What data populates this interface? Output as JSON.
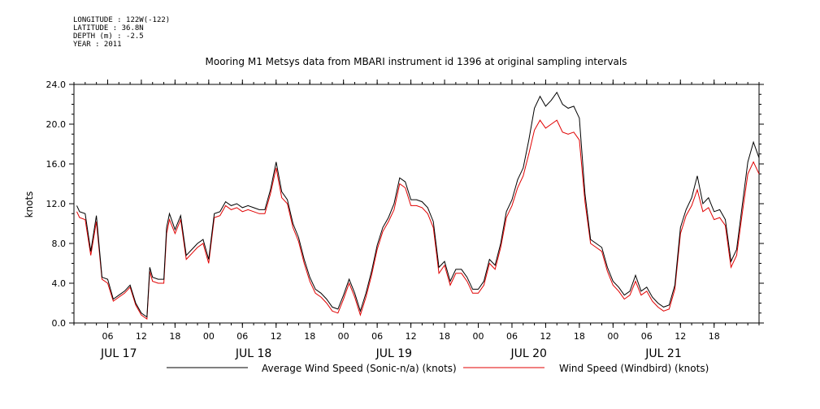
{
  "meta": {
    "longitude": "LONGITUDE : 122W(-122)",
    "latitude": "LATITUDE : 36.8N",
    "depth": "DEPTH (m) : -2.5",
    "year": "YEAR : 2011"
  },
  "chart_data": {
    "type": "line",
    "title": "Mooring M1 Metsys data from MBARI instrument id 1396 at original sampling intervals",
    "ylabel": "knots",
    "xlabel": "",
    "ylim": [
      0,
      24
    ],
    "y_ticks": [
      "0.0",
      "4.0",
      "8.0",
      "12.0",
      "16.0",
      "20.0",
      "24.0"
    ],
    "x_range_hours": [
      0,
      122
    ],
    "x_hour_ticks": [
      {
        "h": 6,
        "label": "06"
      },
      {
        "h": 12,
        "label": "12"
      },
      {
        "h": 18,
        "label": "18"
      },
      {
        "h": 24,
        "label": "00"
      },
      {
        "h": 30,
        "label": "06"
      },
      {
        "h": 36,
        "label": "12"
      },
      {
        "h": 42,
        "label": "18"
      },
      {
        "h": 48,
        "label": "00"
      },
      {
        "h": 54,
        "label": "06"
      },
      {
        "h": 60,
        "label": "12"
      },
      {
        "h": 66,
        "label": "18"
      },
      {
        "h": 72,
        "label": "00"
      },
      {
        "h": 78,
        "label": "06"
      },
      {
        "h": 84,
        "label": "12"
      },
      {
        "h": 90,
        "label": "18"
      },
      {
        "h": 96,
        "label": "00"
      },
      {
        "h": 102,
        "label": "06"
      },
      {
        "h": 108,
        "label": "12"
      },
      {
        "h": 114,
        "label": "18"
      }
    ],
    "x_day_labels": [
      {
        "h": 8,
        "label": "JUL 17"
      },
      {
        "h": 32,
        "label": "JUL 18"
      },
      {
        "h": 57,
        "label": "JUL 19"
      },
      {
        "h": 81,
        "label": "JUL 20"
      },
      {
        "h": 105,
        "label": "JUL 21"
      }
    ],
    "grid": false,
    "legend_position": "bottom",
    "series": [
      {
        "name": "Average Wind Speed (Sonic-n/a) (knots)",
        "color": "#000000",
        "points": [
          [
            0.5,
            11.8
          ],
          [
            1,
            11.2
          ],
          [
            2,
            11.0
          ],
          [
            3,
            7.2
          ],
          [
            4,
            10.8
          ],
          [
            5,
            4.6
          ],
          [
            6,
            4.4
          ],
          [
            7,
            2.4
          ],
          [
            8,
            2.8
          ],
          [
            9,
            3.2
          ],
          [
            10,
            3.8
          ],
          [
            11,
            2.0
          ],
          [
            12,
            1.0
          ],
          [
            13,
            0.6
          ],
          [
            13.5,
            5.6
          ],
          [
            14,
            4.6
          ],
          [
            15,
            4.4
          ],
          [
            16,
            4.4
          ],
          [
            16.5,
            9.6
          ],
          [
            17,
            11.0
          ],
          [
            18,
            9.4
          ],
          [
            19,
            10.8
          ],
          [
            20,
            6.8
          ],
          [
            21,
            7.4
          ],
          [
            22,
            8.0
          ],
          [
            23,
            8.4
          ],
          [
            24,
            6.4
          ],
          [
            25,
            11.0
          ],
          [
            26,
            11.2
          ],
          [
            27,
            12.2
          ],
          [
            28,
            11.8
          ],
          [
            29,
            12.0
          ],
          [
            30,
            11.6
          ],
          [
            31,
            11.8
          ],
          [
            32,
            11.6
          ],
          [
            33,
            11.4
          ],
          [
            34,
            11.4
          ],
          [
            35,
            13.4
          ],
          [
            36,
            16.2
          ],
          [
            37,
            13.2
          ],
          [
            38,
            12.4
          ],
          [
            39,
            10.0
          ],
          [
            40,
            8.6
          ],
          [
            41,
            6.4
          ],
          [
            42,
            4.6
          ],
          [
            43,
            3.4
          ],
          [
            44,
            3.0
          ],
          [
            45,
            2.4
          ],
          [
            46,
            1.6
          ],
          [
            47,
            1.4
          ],
          [
            48,
            2.8
          ],
          [
            49,
            4.4
          ],
          [
            50,
            3.0
          ],
          [
            51,
            1.2
          ],
          [
            52,
            3.0
          ],
          [
            53,
            5.2
          ],
          [
            54,
            7.8
          ],
          [
            55,
            9.6
          ],
          [
            56,
            10.6
          ],
          [
            57,
            12.0
          ],
          [
            58,
            14.6
          ],
          [
            59,
            14.2
          ],
          [
            60,
            12.4
          ],
          [
            61,
            12.4
          ],
          [
            62,
            12.2
          ],
          [
            63,
            11.6
          ],
          [
            64,
            10.2
          ],
          [
            65,
            5.6
          ],
          [
            66,
            6.2
          ],
          [
            67,
            4.2
          ],
          [
            68,
            5.4
          ],
          [
            69,
            5.4
          ],
          [
            70,
            4.6
          ],
          [
            71,
            3.4
          ],
          [
            72,
            3.4
          ],
          [
            73,
            4.2
          ],
          [
            74,
            6.4
          ],
          [
            75,
            5.8
          ],
          [
            76,
            8.0
          ],
          [
            77,
            11.2
          ],
          [
            78,
            12.4
          ],
          [
            79,
            14.4
          ],
          [
            80,
            15.6
          ],
          [
            81,
            18.4
          ],
          [
            82,
            21.6
          ],
          [
            83,
            22.8
          ],
          [
            84,
            21.8
          ],
          [
            85,
            22.4
          ],
          [
            86,
            23.2
          ],
          [
            87,
            22.0
          ],
          [
            88,
            21.6
          ],
          [
            89,
            21.8
          ],
          [
            90,
            20.6
          ],
          [
            91,
            13.0
          ],
          [
            92,
            8.4
          ],
          [
            93,
            8.0
          ],
          [
            94,
            7.6
          ],
          [
            95,
            5.6
          ],
          [
            96,
            4.2
          ],
          [
            97,
            3.6
          ],
          [
            98,
            2.8
          ],
          [
            99,
            3.2
          ],
          [
            100,
            4.8
          ],
          [
            101,
            3.2
          ],
          [
            102,
            3.6
          ],
          [
            103,
            2.6
          ],
          [
            104,
            2.0
          ],
          [
            105,
            1.6
          ],
          [
            106,
            1.8
          ],
          [
            107,
            3.8
          ],
          [
            108,
            9.6
          ],
          [
            109,
            11.4
          ],
          [
            110,
            12.6
          ],
          [
            111,
            14.8
          ],
          [
            112,
            12.0
          ],
          [
            113,
            12.6
          ],
          [
            114,
            11.2
          ],
          [
            115,
            11.4
          ],
          [
            116,
            10.4
          ],
          [
            117,
            6.2
          ],
          [
            118,
            7.4
          ],
          [
            119,
            11.8
          ],
          [
            120,
            16.2
          ],
          [
            121,
            18.2
          ],
          [
            122,
            16.6
          ]
        ]
      },
      {
        "name": "Wind Speed (Windbird) (knots)",
        "color": "#e00000",
        "points": [
          [
            0.5,
            11.2
          ],
          [
            1,
            10.6
          ],
          [
            2,
            10.4
          ],
          [
            3,
            6.8
          ],
          [
            4,
            10.2
          ],
          [
            5,
            4.4
          ],
          [
            6,
            4.0
          ],
          [
            7,
            2.2
          ],
          [
            8,
            2.6
          ],
          [
            9,
            3.0
          ],
          [
            10,
            3.6
          ],
          [
            11,
            1.8
          ],
          [
            12,
            0.8
          ],
          [
            13,
            0.4
          ],
          [
            13.5,
            5.2
          ],
          [
            14,
            4.2
          ],
          [
            15,
            4.0
          ],
          [
            16,
            4.0
          ],
          [
            16.5,
            9.0
          ],
          [
            17,
            10.4
          ],
          [
            18,
            9.0
          ],
          [
            19,
            10.4
          ],
          [
            20,
            6.4
          ],
          [
            21,
            7.0
          ],
          [
            22,
            7.6
          ],
          [
            23,
            8.0
          ],
          [
            24,
            6.0
          ],
          [
            25,
            10.6
          ],
          [
            26,
            10.8
          ],
          [
            27,
            11.8
          ],
          [
            28,
            11.4
          ],
          [
            29,
            11.6
          ],
          [
            30,
            11.2
          ],
          [
            31,
            11.4
          ],
          [
            32,
            11.2
          ],
          [
            33,
            11.0
          ],
          [
            34,
            11.0
          ],
          [
            35,
            13.0
          ],
          [
            36,
            15.6
          ],
          [
            37,
            12.6
          ],
          [
            38,
            12.0
          ],
          [
            39,
            9.6
          ],
          [
            40,
            8.2
          ],
          [
            41,
            6.0
          ],
          [
            42,
            4.2
          ],
          [
            43,
            3.0
          ],
          [
            44,
            2.6
          ],
          [
            45,
            2.0
          ],
          [
            46,
            1.2
          ],
          [
            47,
            1.0
          ],
          [
            48,
            2.4
          ],
          [
            49,
            4.0
          ],
          [
            50,
            2.6
          ],
          [
            51,
            0.8
          ],
          [
            52,
            2.6
          ],
          [
            53,
            4.8
          ],
          [
            54,
            7.4
          ],
          [
            55,
            9.2
          ],
          [
            56,
            10.2
          ],
          [
            57,
            11.4
          ],
          [
            58,
            14.0
          ],
          [
            59,
            13.6
          ],
          [
            60,
            11.8
          ],
          [
            61,
            11.8
          ],
          [
            62,
            11.6
          ],
          [
            63,
            11.0
          ],
          [
            64,
            9.6
          ],
          [
            65,
            5.0
          ],
          [
            66,
            5.8
          ],
          [
            67,
            3.8
          ],
          [
            68,
            5.0
          ],
          [
            69,
            5.0
          ],
          [
            70,
            4.2
          ],
          [
            71,
            3.0
          ],
          [
            72,
            3.0
          ],
          [
            73,
            3.8
          ],
          [
            74,
            6.0
          ],
          [
            75,
            5.4
          ],
          [
            76,
            7.6
          ],
          [
            77,
            10.6
          ],
          [
            78,
            11.8
          ],
          [
            79,
            13.6
          ],
          [
            80,
            14.8
          ],
          [
            81,
            17.0
          ],
          [
            82,
            19.4
          ],
          [
            83,
            20.4
          ],
          [
            84,
            19.6
          ],
          [
            85,
            20.0
          ],
          [
            86,
            20.4
          ],
          [
            87,
            19.2
          ],
          [
            88,
            19.0
          ],
          [
            89,
            19.2
          ],
          [
            90,
            18.4
          ],
          [
            91,
            12.2
          ],
          [
            92,
            8.0
          ],
          [
            93,
            7.6
          ],
          [
            94,
            7.2
          ],
          [
            95,
            5.2
          ],
          [
            96,
            3.8
          ],
          [
            97,
            3.2
          ],
          [
            98,
            2.4
          ],
          [
            99,
            2.8
          ],
          [
            100,
            4.2
          ],
          [
            101,
            2.8
          ],
          [
            102,
            3.2
          ],
          [
            103,
            2.2
          ],
          [
            104,
            1.6
          ],
          [
            105,
            1.2
          ],
          [
            106,
            1.4
          ],
          [
            107,
            3.4
          ],
          [
            108,
            9.0
          ],
          [
            109,
            10.8
          ],
          [
            110,
            11.8
          ],
          [
            111,
            13.4
          ],
          [
            112,
            11.2
          ],
          [
            113,
            11.6
          ],
          [
            114,
            10.4
          ],
          [
            115,
            10.6
          ],
          [
            116,
            9.8
          ],
          [
            117,
            5.6
          ],
          [
            118,
            6.8
          ],
          [
            119,
            11.0
          ],
          [
            120,
            15.0
          ],
          [
            121,
            16.2
          ],
          [
            122,
            15.0
          ]
        ]
      }
    ]
  }
}
